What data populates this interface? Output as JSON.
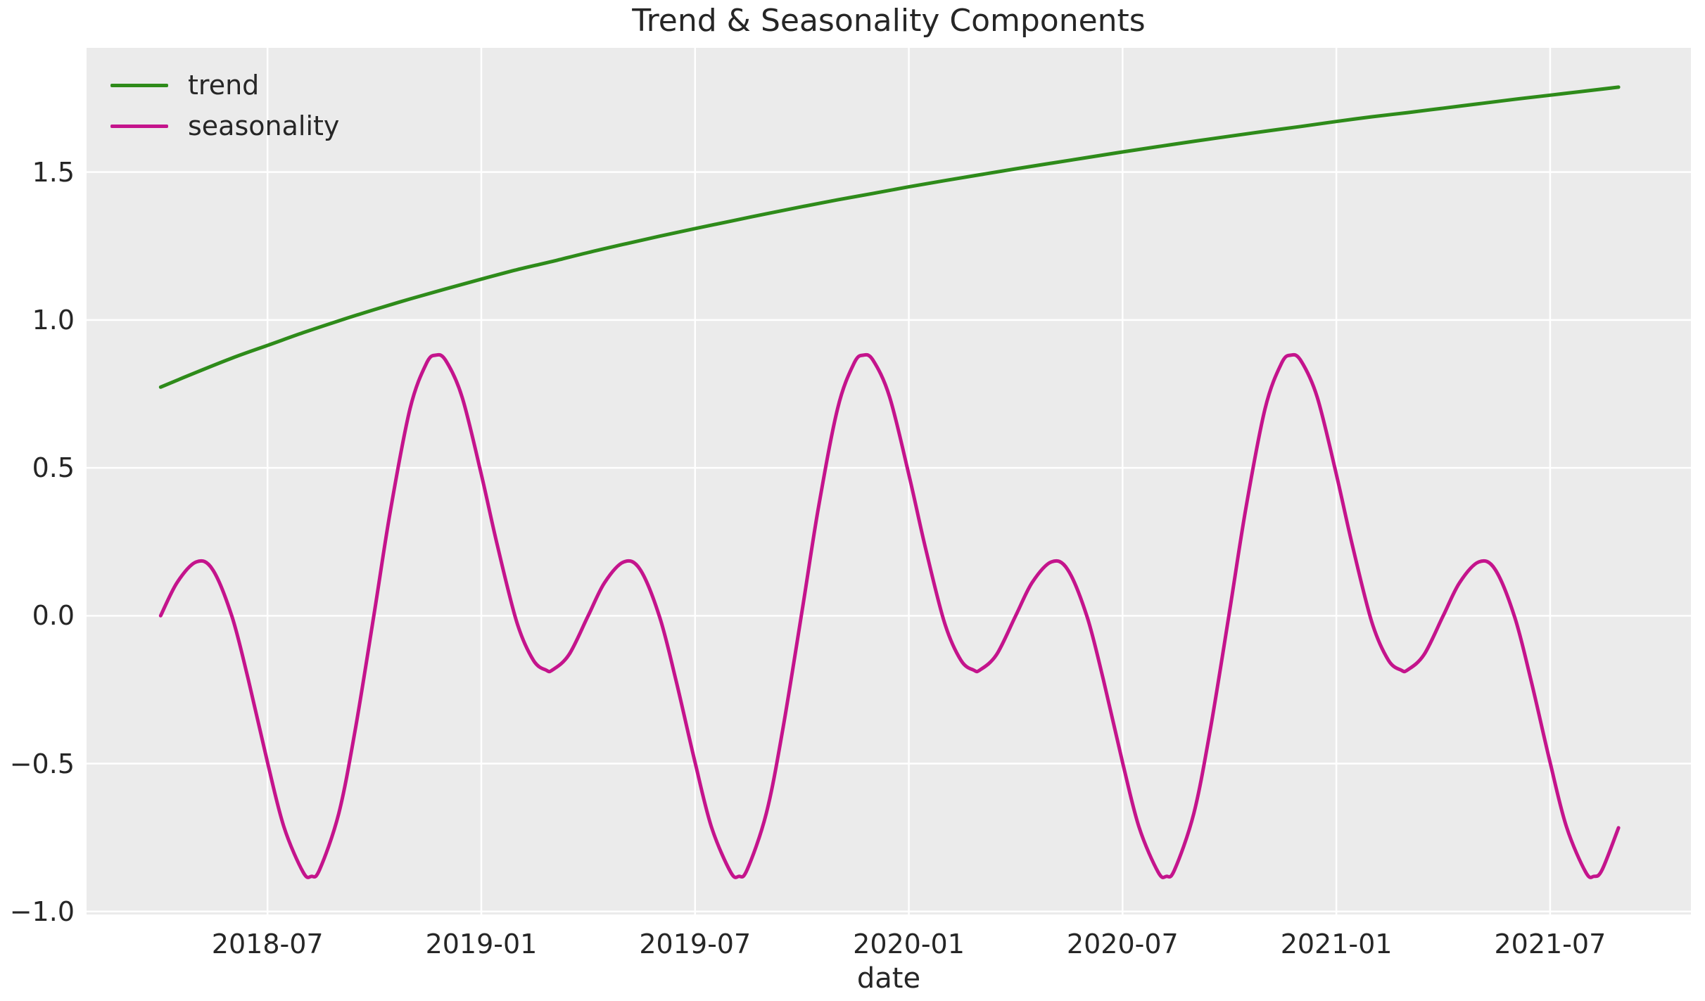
{
  "figure": {
    "title": "Trend & Seasonality Components",
    "xlabel": "date"
  },
  "colors": {
    "figure_bg": "#ffffff",
    "axes_bg": "#ebebeb",
    "grid": "#ffffff",
    "text": "#262626",
    "trend": "#2e8b1a",
    "seasonality": "#c4148c"
  },
  "legend": {
    "position": "upper left",
    "items": [
      {
        "label": "trend",
        "color": "#2e8b1a"
      },
      {
        "label": "seasonality",
        "color": "#c4148c"
      }
    ]
  },
  "chart_data": {
    "type": "line",
    "title": "Trend & Seasonality Components",
    "xlabel": "date",
    "ylabel": "",
    "grid": true,
    "legend_position": "upper left",
    "xlim": [
      "2018-01-29",
      "2021-10-30"
    ],
    "ylim": [
      -1.01,
      1.92
    ],
    "x_ticks": [
      {
        "label": "2018-07",
        "date": "2018-07-01"
      },
      {
        "label": "2019-01",
        "date": "2019-01-01"
      },
      {
        "label": "2019-07",
        "date": "2019-07-01"
      },
      {
        "label": "2020-01",
        "date": "2020-01-01"
      },
      {
        "label": "2020-07",
        "date": "2020-07-01"
      },
      {
        "label": "2021-01",
        "date": "2021-01-01"
      },
      {
        "label": "2021-07",
        "date": "2021-07-01"
      }
    ],
    "y_ticks": [
      {
        "label": "1.5",
        "value": 1.5
      },
      {
        "label": "1.0",
        "value": 1.0
      },
      {
        "label": "0.5",
        "value": 0.5
      },
      {
        "label": "0.0",
        "value": 0.0
      },
      {
        "label": "−0.5",
        "value": -0.5
      },
      {
        "label": "−1.0",
        "value": -1.0
      }
    ],
    "series": [
      {
        "name": "trend",
        "color": "#2e8b1a",
        "points": [
          [
            "2018-04-01",
            0.773
          ],
          [
            "2018-05-01",
            0.823
          ],
          [
            "2018-06-01",
            0.871
          ],
          [
            "2018-07-01",
            0.914
          ],
          [
            "2018-08-01",
            0.957
          ],
          [
            "2018-09-01",
            0.997
          ],
          [
            "2018-10-01",
            1.035
          ],
          [
            "2018-11-01",
            1.071
          ],
          [
            "2018-12-01",
            1.105
          ],
          [
            "2019-01-01",
            1.138
          ],
          [
            "2019-02-01",
            1.17
          ],
          [
            "2019-03-01",
            1.198
          ],
          [
            "2019-04-01",
            1.228
          ],
          [
            "2019-05-01",
            1.256
          ],
          [
            "2019-06-01",
            1.283
          ],
          [
            "2019-07-01",
            1.309
          ],
          [
            "2019-08-01",
            1.334
          ],
          [
            "2019-09-01",
            1.359
          ],
          [
            "2019-10-01",
            1.383
          ],
          [
            "2019-11-01",
            1.406
          ],
          [
            "2019-12-01",
            1.428
          ],
          [
            "2020-01-01",
            1.45
          ],
          [
            "2020-02-01",
            1.471
          ],
          [
            "2020-03-01",
            1.491
          ],
          [
            "2020-04-01",
            1.511
          ],
          [
            "2020-05-01",
            1.53
          ],
          [
            "2020-06-01",
            1.549
          ],
          [
            "2020-07-01",
            1.568
          ],
          [
            "2020-08-01",
            1.586
          ],
          [
            "2020-09-01",
            1.604
          ],
          [
            "2020-10-01",
            1.621
          ],
          [
            "2020-11-01",
            1.638
          ],
          [
            "2020-12-01",
            1.654
          ],
          [
            "2021-01-01",
            1.671
          ],
          [
            "2021-02-01",
            1.687
          ],
          [
            "2021-03-01",
            1.701
          ],
          [
            "2021-04-01",
            1.716
          ],
          [
            "2021-05-01",
            1.731
          ],
          [
            "2021-06-01",
            1.746
          ],
          [
            "2021-07-01",
            1.76
          ],
          [
            "2021-08-01",
            1.774
          ],
          [
            "2021-08-29",
            1.787
          ]
        ]
      },
      {
        "name": "seasonality",
        "color": "#c4148c",
        "points": [
          [
            "2018-04-01",
            0.0
          ],
          [
            "2018-04-15",
            0.112
          ],
          [
            "2018-05-01",
            0.182
          ],
          [
            "2018-05-15",
            0.156
          ],
          [
            "2018-06-01",
            -0.002
          ],
          [
            "2018-06-15",
            -0.216
          ],
          [
            "2018-07-01",
            -0.496
          ],
          [
            "2018-07-15",
            -0.714
          ],
          [
            "2018-08-01",
            -0.867
          ],
          [
            "2018-08-08",
            -0.881
          ],
          [
            "2018-08-15",
            -0.859
          ],
          [
            "2018-09-01",
            -0.668
          ],
          [
            "2018-09-15",
            -0.386
          ],
          [
            "2018-10-01",
            0.013
          ],
          [
            "2018-10-15",
            0.363
          ],
          [
            "2018-11-01",
            0.7
          ],
          [
            "2018-11-15",
            0.853
          ],
          [
            "2018-11-23",
            0.881
          ],
          [
            "2018-12-01",
            0.863
          ],
          [
            "2018-12-15",
            0.74
          ],
          [
            "2019-01-01",
            0.478
          ],
          [
            "2019-01-15",
            0.233
          ],
          [
            "2019-02-01",
            -0.023
          ],
          [
            "2019-02-15",
            -0.15
          ],
          [
            "2019-02-26",
            -0.184
          ],
          [
            "2019-03-01",
            -0.183
          ],
          [
            "2019-03-15",
            -0.132
          ],
          [
            "2019-04-01",
            0.0
          ],
          [
            "2019-04-15",
            0.112
          ],
          [
            "2019-05-01",
            0.182
          ],
          [
            "2019-05-15",
            0.156
          ],
          [
            "2019-06-01",
            -0.002
          ],
          [
            "2019-06-15",
            -0.216
          ],
          [
            "2019-07-01",
            -0.496
          ],
          [
            "2019-07-15",
            -0.714
          ],
          [
            "2019-08-01",
            -0.867
          ],
          [
            "2019-08-08",
            -0.881
          ],
          [
            "2019-08-15",
            -0.859
          ],
          [
            "2019-09-01",
            -0.668
          ],
          [
            "2019-09-15",
            -0.386
          ],
          [
            "2019-10-01",
            0.013
          ],
          [
            "2019-10-15",
            0.363
          ],
          [
            "2019-11-01",
            0.7
          ],
          [
            "2019-11-15",
            0.853
          ],
          [
            "2019-11-23",
            0.881
          ],
          [
            "2019-12-01",
            0.863
          ],
          [
            "2019-12-15",
            0.74
          ],
          [
            "2020-01-01",
            0.478
          ],
          [
            "2020-01-15",
            0.233
          ],
          [
            "2020-02-01",
            -0.023
          ],
          [
            "2020-02-15",
            -0.15
          ],
          [
            "2020-02-26",
            -0.184
          ],
          [
            "2020-03-01",
            -0.183
          ],
          [
            "2020-03-15",
            -0.132
          ],
          [
            "2020-04-01",
            0.0
          ],
          [
            "2020-04-15",
            0.112
          ],
          [
            "2020-05-01",
            0.182
          ],
          [
            "2020-05-15",
            0.156
          ],
          [
            "2020-06-01",
            -0.002
          ],
          [
            "2020-06-15",
            -0.216
          ],
          [
            "2020-07-01",
            -0.496
          ],
          [
            "2020-07-15",
            -0.714
          ],
          [
            "2020-08-01",
            -0.867
          ],
          [
            "2020-08-08",
            -0.881
          ],
          [
            "2020-08-15",
            -0.859
          ],
          [
            "2020-09-01",
            -0.668
          ],
          [
            "2020-09-15",
            -0.386
          ],
          [
            "2020-10-01",
            0.013
          ],
          [
            "2020-10-15",
            0.363
          ],
          [
            "2020-11-01",
            0.7
          ],
          [
            "2020-11-15",
            0.853
          ],
          [
            "2020-11-23",
            0.881
          ],
          [
            "2020-12-01",
            0.863
          ],
          [
            "2020-12-15",
            0.74
          ],
          [
            "2021-01-01",
            0.478
          ],
          [
            "2021-01-15",
            0.233
          ],
          [
            "2021-02-01",
            -0.023
          ],
          [
            "2021-02-15",
            -0.15
          ],
          [
            "2021-02-26",
            -0.184
          ],
          [
            "2021-03-01",
            -0.183
          ],
          [
            "2021-03-15",
            -0.132
          ],
          [
            "2021-04-01",
            0.0
          ],
          [
            "2021-04-15",
            0.112
          ],
          [
            "2021-05-01",
            0.182
          ],
          [
            "2021-05-15",
            0.156
          ],
          [
            "2021-06-01",
            -0.002
          ],
          [
            "2021-06-15",
            -0.216
          ],
          [
            "2021-07-01",
            -0.496
          ],
          [
            "2021-07-15",
            -0.714
          ],
          [
            "2021-08-01",
            -0.867
          ],
          [
            "2021-08-08",
            -0.881
          ],
          [
            "2021-08-15",
            -0.859
          ],
          [
            "2021-08-29",
            -0.717
          ]
        ]
      }
    ]
  }
}
